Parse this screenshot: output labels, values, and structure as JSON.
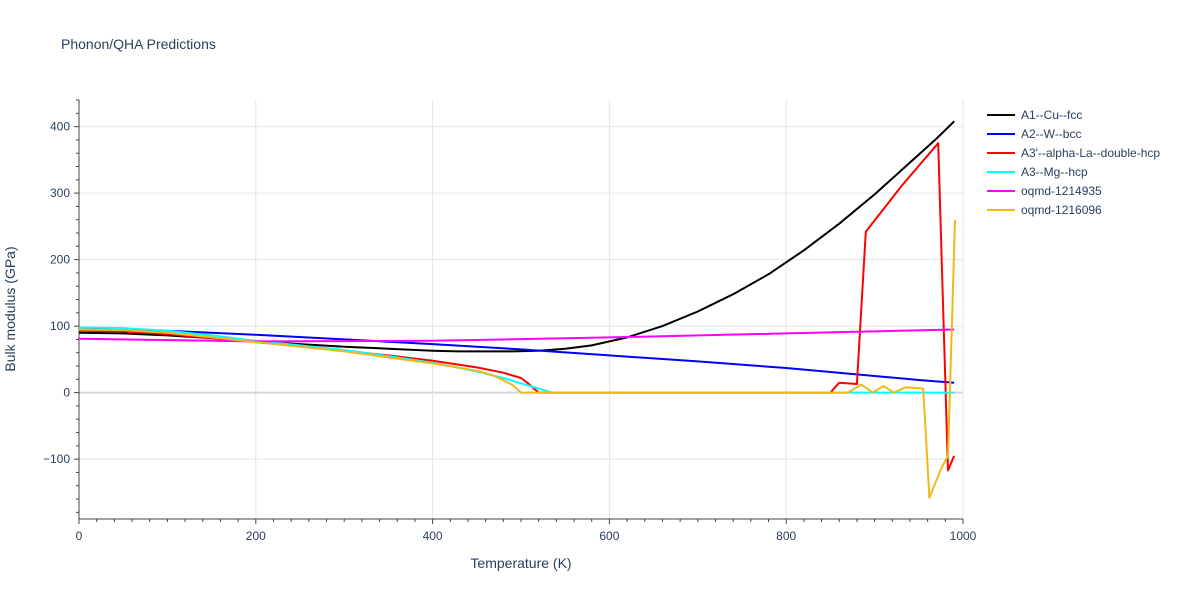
{
  "chart_data": {
    "type": "line",
    "title": "Phonon/QHA Predictions",
    "xlabel": "Temperature (K)",
    "ylabel": "Bulk modulus (GPa)",
    "xlim": [
      0,
      1000
    ],
    "ylim": [
      -190,
      440
    ],
    "xticks": [
      0,
      200,
      400,
      600,
      800,
      1000
    ],
    "yticks": [
      -100,
      0,
      100,
      200,
      300,
      400
    ],
    "grid": true,
    "legend_position": "right",
    "series": [
      {
        "name": "A1--Cu--fcc",
        "color": "#000000",
        "x": [
          0,
          50,
          100,
          150,
          200,
          250,
          300,
          350,
          400,
          430,
          460,
          490,
          520,
          550,
          580,
          620,
          660,
          700,
          740,
          780,
          820,
          860,
          900,
          940,
          970,
          990
        ],
        "y": [
          90,
          89,
          86,
          82,
          77,
          73,
          69,
          66,
          63,
          62,
          62,
          62,
          63,
          66,
          71,
          83,
          100,
          122,
          148,
          178,
          214,
          254,
          298,
          346,
          382,
          408
        ]
      },
      {
        "name": "A2--W--bcc",
        "color": "#0000ff",
        "x": [
          0,
          100,
          200,
          300,
          400,
          500,
          600,
          700,
          800,
          900,
          950,
          990
        ],
        "y": [
          97,
          93,
          87,
          80,
          73,
          65,
          56,
          47,
          37,
          25,
          19,
          15
        ]
      },
      {
        "name": "A3'--alpha-La--double-hcp",
        "color": "#ff0000",
        "x": [
          0,
          50,
          100,
          150,
          200,
          250,
          300,
          350,
          400,
          450,
          480,
          500,
          510,
          520,
          600,
          700,
          800,
          850,
          860,
          880,
          890,
          930,
          972,
          983,
          990
        ],
        "y": [
          93,
          92,
          88,
          82,
          76,
          70,
          63,
          56,
          48,
          38,
          30,
          22,
          12,
          0,
          0,
          0,
          0,
          0,
          15,
          13,
          242,
          310,
          375,
          -117,
          -95
        ]
      },
      {
        "name": "A3--Mg--hcp",
        "color": "#00ffff",
        "x": [
          0,
          50,
          100,
          150,
          200,
          250,
          300,
          350,
          400,
          450,
          480,
          500,
          520,
          535,
          600,
          700,
          800,
          900,
          990
        ],
        "y": [
          98,
          97,
          93,
          86,
          78,
          71,
          64,
          55,
          45,
          32,
          22,
          14,
          6,
          0,
          0,
          0,
          0,
          0,
          0
        ]
      },
      {
        "name": "oqmd-1214935",
        "color": "#ff00ff",
        "x": [
          0,
          200,
          400,
          600,
          800,
          990
        ],
        "y": [
          81,
          77,
          78,
          83,
          89,
          95
        ]
      },
      {
        "name": "oqmd-1216096",
        "color": "#f0b819",
        "x": [
          0,
          50,
          100,
          150,
          200,
          250,
          300,
          350,
          400,
          450,
          470,
          490,
          500,
          510,
          600,
          700,
          800,
          870,
          885,
          898,
          910,
          922,
          935,
          955,
          962,
          975,
          983,
          991
        ],
        "y": [
          95,
          94,
          90,
          83,
          76,
          69,
          62,
          53,
          44,
          33,
          25,
          12,
          0,
          0,
          0,
          0,
          0,
          0,
          12,
          0,
          10,
          0,
          8,
          6,
          -158,
          -115,
          -95,
          260
        ]
      }
    ]
  }
}
